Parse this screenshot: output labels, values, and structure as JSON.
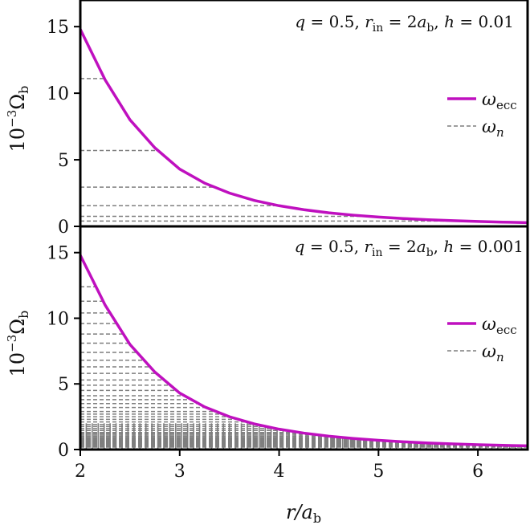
{
  "colors": {
    "ecc": "#bf10bf",
    "modes": "#7f7f7f",
    "frame": "#000000"
  },
  "chart_data": [
    {
      "type": "line",
      "annotation": "q = 0.5, r_in = 2a_b, h = 0.01",
      "ylabel": "10^{-3} Ω_b",
      "xlim": [
        2,
        6.5
      ],
      "ylim": [
        0,
        17
      ],
      "yticks": [
        "0",
        "5",
        "10",
        "15"
      ],
      "legend": {
        "placement": "right",
        "entries": [
          "ω_ecc",
          "ω_n"
        ]
      },
      "series": [
        {
          "name": "ω_ecc",
          "x": [
            2.0,
            2.25,
            2.5,
            2.75,
            3.0,
            3.25,
            3.5,
            3.75,
            4.0,
            4.25,
            4.5,
            4.75,
            5.0,
            5.25,
            5.5,
            5.75,
            6.0,
            6.25,
            6.5
          ],
          "y": [
            14.8,
            11.0,
            8.0,
            5.9,
            4.3,
            3.25,
            2.5,
            1.95,
            1.55,
            1.25,
            1.02,
            0.84,
            0.7,
            0.59,
            0.5,
            0.43,
            0.37,
            0.32,
            0.28
          ]
        },
        {
          "name": "ω_n",
          "levels": [
            11.1,
            5.7,
            2.95,
            1.55,
            0.75,
            0.4
          ]
        }
      ]
    },
    {
      "type": "line",
      "annotation": "q = 0.5, r_in = 2a_b, h = 0.001",
      "ylabel": "10^{-3} Ω_b",
      "xlabel": "r/a_b",
      "xlim": [
        2,
        6.5
      ],
      "ylim": [
        0,
        17
      ],
      "xticks": [
        "2",
        "3",
        "4",
        "5",
        "6"
      ],
      "yticks": [
        "0",
        "5",
        "10",
        "15"
      ],
      "legend": {
        "placement": "right",
        "entries": [
          "ω_ecc",
          "ω_n"
        ]
      },
      "series": [
        {
          "name": "ω_ecc",
          "x": [
            2.0,
            2.25,
            2.5,
            2.75,
            3.0,
            3.25,
            3.5,
            3.75,
            4.0,
            4.25,
            4.5,
            4.75,
            5.0,
            5.25,
            5.5,
            5.75,
            6.0,
            6.25,
            6.5
          ],
          "y": [
            14.8,
            11.0,
            8.0,
            5.9,
            4.3,
            3.25,
            2.5,
            1.95,
            1.55,
            1.25,
            1.02,
            0.84,
            0.7,
            0.59,
            0.5,
            0.43,
            0.37,
            0.32,
            0.28
          ]
        },
        {
          "name": "ω_n",
          "levels": [
            12.4,
            11.3,
            10.4,
            9.6,
            8.8,
            8.1,
            7.4,
            6.8,
            6.3,
            5.8,
            5.3,
            4.9,
            4.5,
            4.1,
            3.8,
            3.5,
            3.2,
            2.9,
            2.7,
            2.5,
            2.3,
            2.1,
            1.9,
            1.75,
            1.6,
            1.45,
            1.3,
            1.2,
            1.1,
            1.0,
            0.9,
            0.82,
            0.75,
            0.68,
            0.62,
            0.56,
            0.5,
            0.45,
            0.4,
            0.35,
            0.3,
            0.26,
            0.22,
            0.18
          ]
        }
      ]
    }
  ]
}
